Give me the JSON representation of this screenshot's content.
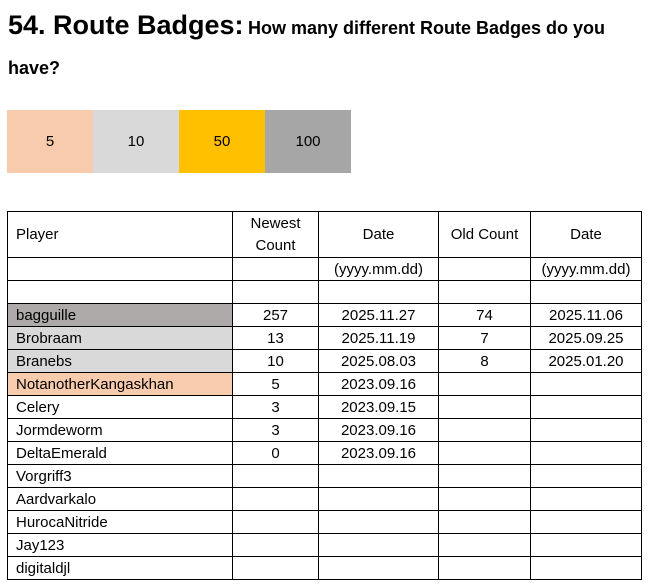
{
  "title": {
    "number_title": "54. Route Badges:",
    "question": "How many different Route Badges do you have?"
  },
  "badges": [
    {
      "label": "5",
      "color": "#F8CBAD"
    },
    {
      "label": "10",
      "color": "#D9D9D9"
    },
    {
      "label": "50",
      "color": "#FFC000"
    },
    {
      "label": "100",
      "color": "#A6A6A6"
    }
  ],
  "table": {
    "headers": [
      "Player",
      "Newest Count",
      "Date",
      "Old Count",
      "Date"
    ],
    "subheaders": [
      "",
      "",
      "(yyyy.mm.dd)",
      "",
      "(yyyy.mm.dd)"
    ],
    "rows": [
      {
        "player": "bagguille",
        "newest": "257",
        "date": "2025.11.27",
        "old": "74",
        "old_date": "2025.11.06",
        "color": "#AEAAAA"
      },
      {
        "player": "Brobraam",
        "newest": "13",
        "date": "2025.11.19",
        "old": "7",
        "old_date": "2025.09.25",
        "color": "#D9D9D9"
      },
      {
        "player": "Branebs",
        "newest": "10",
        "date": "2025.08.03",
        "old": "8",
        "old_date": "2025.01.20",
        "color": "#D9D9D9"
      },
      {
        "player": "NotanotherKangaskhan",
        "newest": "5",
        "date": "2023.09.16",
        "old": "",
        "old_date": "",
        "color": "#F8CBAD"
      },
      {
        "player": "Celery",
        "newest": "3",
        "date": "2023.09.15",
        "old": "",
        "old_date": "",
        "color": ""
      },
      {
        "player": "Jormdeworm",
        "newest": "3",
        "date": "2023.09.16",
        "old": "",
        "old_date": "",
        "color": ""
      },
      {
        "player": "DeltaEmerald",
        "newest": "0",
        "date": "2023.09.16",
        "old": "",
        "old_date": "",
        "color": ""
      },
      {
        "player": "Vorgriff3",
        "newest": "",
        "date": "",
        "old": "",
        "old_date": "",
        "color": ""
      },
      {
        "player": "Aardvarkalo",
        "newest": "",
        "date": "",
        "old": "",
        "old_date": "",
        "color": ""
      },
      {
        "player": "HurocaNitride",
        "newest": "",
        "date": "",
        "old": "",
        "old_date": "",
        "color": ""
      },
      {
        "player": "Jay123",
        "newest": "",
        "date": "",
        "old": "",
        "old_date": "",
        "color": ""
      },
      {
        "player": "digitaldjl",
        "newest": "",
        "date": "",
        "old": "",
        "old_date": "",
        "color": ""
      }
    ]
  }
}
